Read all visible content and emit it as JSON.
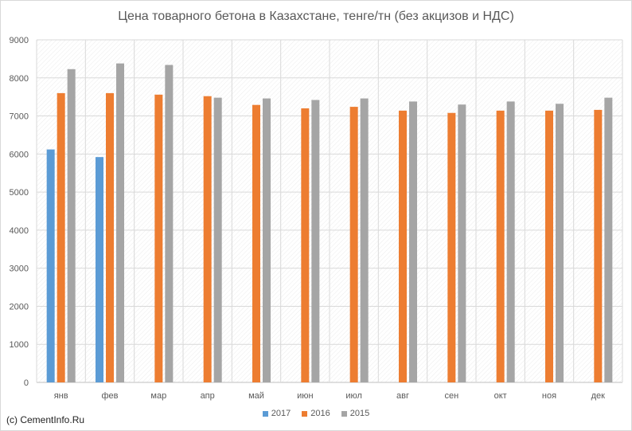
{
  "chart_data": {
    "type": "bar",
    "title": "Цена товарного бетона в Казахстане, тенге/тн (без акцизов и НДС)",
    "categories": [
      "янв",
      "фев",
      "мар",
      "апр",
      "май",
      "июн",
      "июл",
      "авг",
      "сен",
      "окт",
      "ноя",
      "дек"
    ],
    "series": [
      {
        "name": "2017",
        "color": "#5b9bd5",
        "values": [
          6120,
          5920,
          null,
          null,
          null,
          null,
          null,
          null,
          null,
          null,
          null,
          null
        ]
      },
      {
        "name": "2016",
        "color": "#ed7d31",
        "values": [
          7600,
          7600,
          7560,
          7520,
          7290,
          7200,
          7240,
          7140,
          7080,
          7140,
          7140,
          7160
        ]
      },
      {
        "name": "2015",
        "color": "#a5a5a5",
        "values": [
          8230,
          8380,
          8340,
          7480,
          7460,
          7420,
          7460,
          7380,
          7300,
          7380,
          7320,
          7480
        ]
      }
    ],
    "ylim": [
      0,
      9000
    ],
    "yticks": [
      "0",
      "1000",
      "2000",
      "3000",
      "4000",
      "5000",
      "6000",
      "7000",
      "8000",
      "9000"
    ],
    "grid": true,
    "legend_position": "bottom"
  },
  "copyright": "(c) CementInfo.Ru"
}
